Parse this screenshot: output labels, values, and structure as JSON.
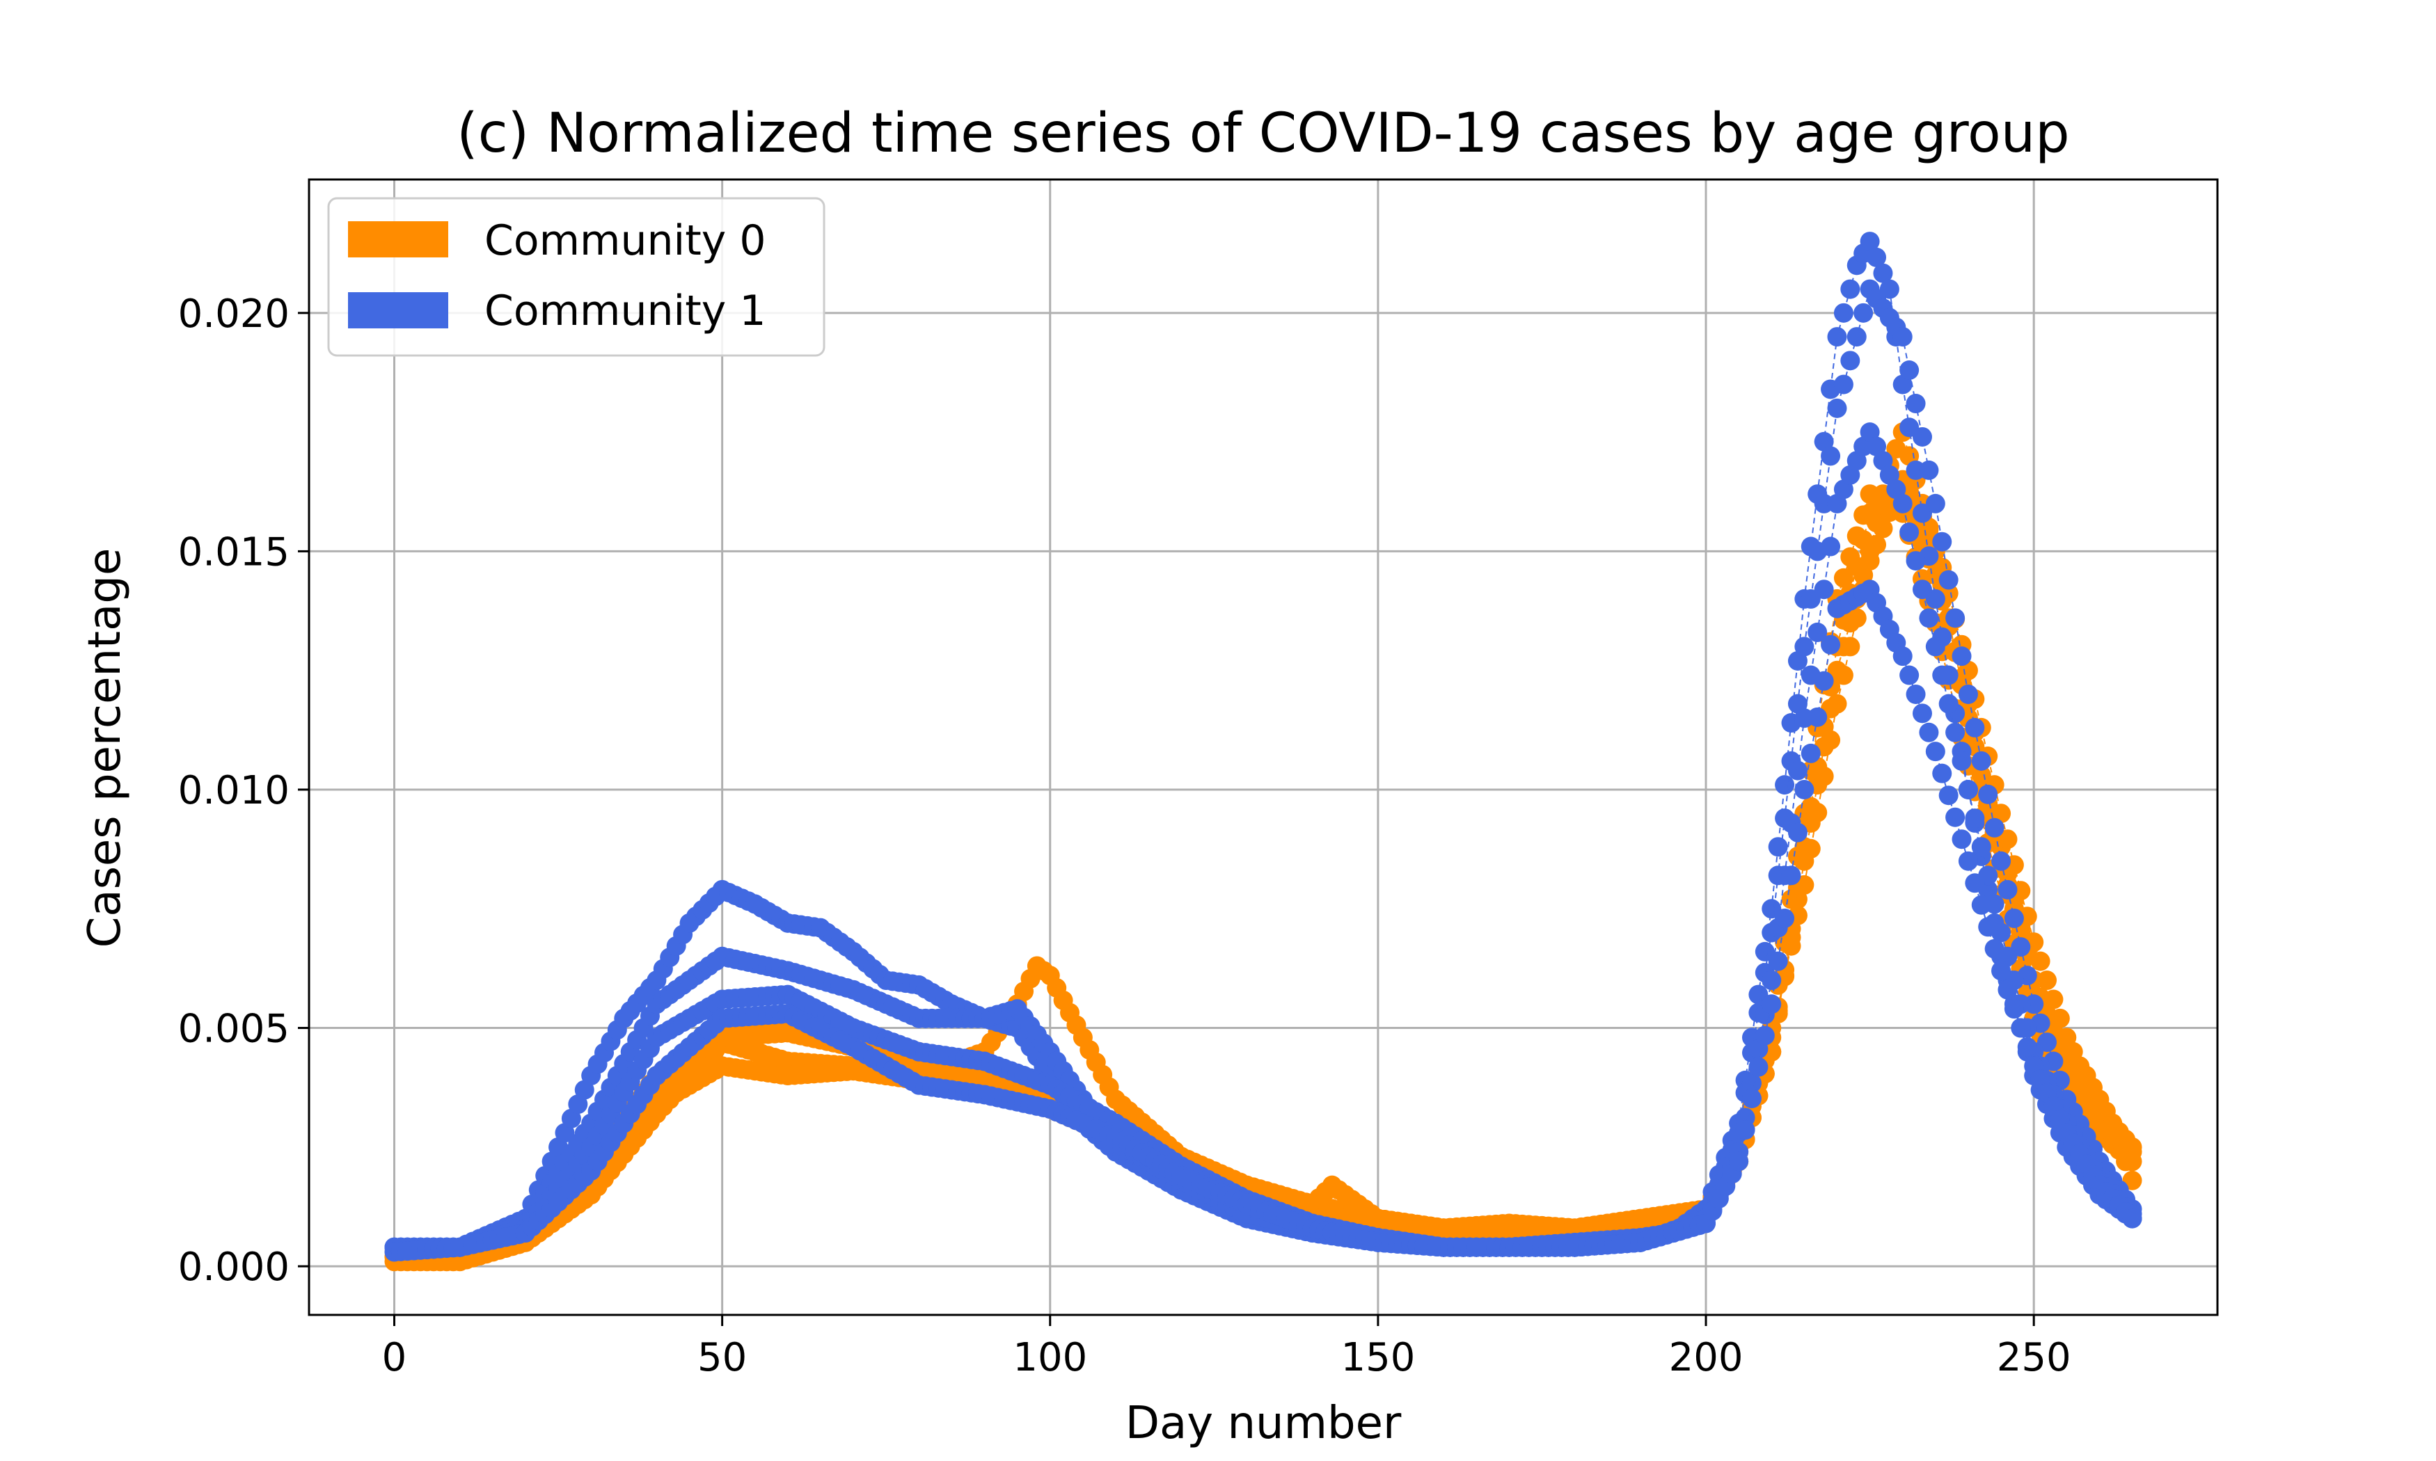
{
  "chart_data": {
    "type": "scatter",
    "title": "(c) Normalized time series of COVID-19 cases by age group",
    "xlabel": "Day number",
    "ylabel": "Cases percentage",
    "xlim": [
      -13,
      278
    ],
    "ylim": [
      -0.00102,
      0.0228
    ],
    "x_ticks": [
      0,
      50,
      100,
      150,
      200,
      250
    ],
    "x_tick_labels": [
      "0",
      "50",
      "100",
      "150",
      "200",
      "250"
    ],
    "y_ticks": [
      0.0,
      0.005,
      0.01,
      0.015,
      0.02
    ],
    "y_tick_labels": [
      "0.000",
      "0.005",
      "0.010",
      "0.015",
      "0.020"
    ],
    "grid": true,
    "legend_position": "top-left",
    "x_range": [
      0,
      265
    ],
    "series": [
      {
        "name": "Community 0",
        "color": "#FF8C00",
        "curves": [
          {
            "x": [
              0,
              10,
              20,
              30,
              40,
              50,
              55,
              60,
              70,
              80,
              90,
              95,
              98,
              100,
              105,
              110,
              120,
              130,
              140,
              143,
              150,
              160,
              170,
              180,
              190,
              195,
              200,
              205,
              210,
              215,
              220,
              225,
              228,
              230,
              235,
              240,
              245,
              250,
              255,
              258,
              262,
              265
            ],
            "y": [
              0.0001,
              0.0001,
              0.0005,
              0.0015,
              0.0032,
              0.0047,
              0.0045,
              0.0043,
              0.0042,
              0.004,
              0.0045,
              0.0055,
              0.0063,
              0.0061,
              0.0048,
              0.0035,
              0.0023,
              0.0016,
              0.0013,
              0.0017,
              0.001,
              0.0008,
              0.0009,
              0.0008,
              0.001,
              0.0011,
              0.0012,
              0.0022,
              0.0045,
              0.0085,
              0.0125,
              0.015,
              0.0168,
              0.0175,
              0.015,
              0.0115,
              0.0085,
              0.006,
              0.0042,
              0.004,
              0.003,
              0.0018
            ]
          },
          {
            "x": [
              0,
              10,
              20,
              30,
              40,
              50,
              60,
              70,
              80,
              90,
              100,
              110,
              120,
              130,
              140,
              150,
              160,
              170,
              180,
              190,
              200,
              205,
              210,
              215,
              220,
              225,
              230,
              235,
              240,
              245,
              250,
              255,
              260,
              265
            ],
            "y": [
              0.0002,
              0.0002,
              0.0006,
              0.0018,
              0.0036,
              0.0048,
              0.0049,
              0.0046,
              0.0042,
              0.0039,
              0.0033,
              0.0027,
              0.002,
              0.0015,
              0.0012,
              0.0009,
              0.0007,
              0.0007,
              0.0007,
              0.0008,
              0.0012,
              0.0025,
              0.005,
              0.0095,
              0.014,
              0.0162,
              0.0158,
              0.0135,
              0.0105,
              0.0078,
              0.0052,
              0.0036,
              0.0028,
              0.0022
            ]
          },
          {
            "x": [
              0,
              10,
              20,
              30,
              40,
              50,
              60,
              70,
              80,
              90,
              100,
              110,
              120,
              130,
              140,
              150,
              160,
              170,
              180,
              190,
              200,
              205,
              210,
              215,
              220,
              225,
              230,
              235,
              240,
              245,
              250,
              255,
              260,
              265
            ],
            "y": [
              0.0002,
              0.0003,
              0.0008,
              0.0022,
              0.004,
              0.005,
              0.0052,
              0.0049,
              0.0045,
              0.0042,
              0.0036,
              0.003,
              0.0023,
              0.0017,
              0.0013,
              0.001,
              0.0008,
              0.0007,
              0.0007,
              0.0008,
              0.0011,
              0.0022,
              0.0045,
              0.0088,
              0.013,
              0.0158,
              0.0162,
              0.0145,
              0.0118,
              0.0088,
              0.006,
              0.004,
              0.003,
              0.0024
            ]
          },
          {
            "x": [
              0,
              10,
              20,
              30,
              40,
              50,
              60,
              70,
              80,
              90,
              100,
              110,
              120,
              130,
              140,
              150,
              160,
              170,
              180,
              190,
              200,
              205,
              210,
              215,
              220,
              225,
              230,
              235,
              240,
              245,
              250,
              255,
              260,
              265
            ],
            "y": [
              0.0003,
              0.0003,
              0.0007,
              0.002,
              0.0034,
              0.0042,
              0.004,
              0.0041,
              0.0039,
              0.004,
              0.0034,
              0.0026,
              0.002,
              0.0014,
              0.0011,
              0.0009,
              0.0007,
              0.0008,
              0.0007,
              0.0008,
              0.0012,
              0.0024,
              0.0048,
              0.008,
              0.0118,
              0.0148,
              0.0165,
              0.0152,
              0.0125,
              0.0095,
              0.0068,
              0.0048,
              0.0033,
              0.0025
            ]
          }
        ]
      },
      {
        "name": "Community 1",
        "color": "#4169E1",
        "curves": [
          {
            "x": [
              0,
              10,
              20,
              30,
              35,
              40,
              45,
              50,
              55,
              60,
              65,
              70,
              75,
              80,
              85,
              90,
              95,
              100,
              105,
              110,
              120,
              130,
              140,
              150,
              160,
              170,
              180,
              190,
              195,
              200,
              205,
              210,
              215,
              220,
              223,
              225,
              228,
              230,
              235,
              240,
              245,
              250,
              255,
              260,
              265
            ],
            "y": [
              0.0004,
              0.0004,
              0.001,
              0.004,
              0.0052,
              0.006,
              0.0072,
              0.0079,
              0.0076,
              0.0072,
              0.0071,
              0.0066,
              0.006,
              0.0059,
              0.0055,
              0.0052,
              0.005,
              0.004,
              0.003,
              0.0024,
              0.0016,
              0.001,
              0.0007,
              0.0005,
              0.0004,
              0.0004,
              0.0005,
              0.0006,
              0.0007,
              0.0012,
              0.003,
              0.0075,
              0.014,
              0.0195,
              0.021,
              0.0215,
              0.0205,
              0.0185,
              0.014,
              0.01,
              0.0065,
              0.004,
              0.0025,
              0.0015,
              0.001
            ]
          },
          {
            "x": [
              0,
              10,
              20,
              30,
              40,
              50,
              60,
              70,
              80,
              90,
              95,
              100,
              105,
              110,
              120,
              130,
              140,
              150,
              160,
              170,
              180,
              190,
              200,
              205,
              210,
              215,
              220,
              225,
              230,
              235,
              240,
              245,
              250,
              255,
              260,
              265
            ],
            "y": [
              0.0004,
              0.0004,
              0.0009,
              0.003,
              0.0055,
              0.0065,
              0.0062,
              0.0058,
              0.0052,
              0.0052,
              0.0054,
              0.0045,
              0.0035,
              0.0026,
              0.0018,
              0.0011,
              0.0008,
              0.0006,
              0.0004,
              0.0004,
              0.0004,
              0.0005,
              0.001,
              0.0028,
              0.007,
              0.013,
              0.018,
              0.0205,
              0.0195,
              0.016,
              0.012,
              0.0085,
              0.0055,
              0.0035,
              0.0022,
              0.0012
            ]
          },
          {
            "x": [
              0,
              10,
              20,
              30,
              40,
              50,
              60,
              70,
              80,
              90,
              100,
              110,
              120,
              130,
              140,
              150,
              160,
              170,
              180,
              190,
              200,
              205,
              210,
              215,
              220,
              225,
              230,
              235,
              240,
              245,
              250,
              255,
              260,
              265
            ],
            "y": [
              0.0004,
              0.0004,
              0.0008,
              0.0025,
              0.0048,
              0.0056,
              0.0057,
              0.005,
              0.0045,
              0.0043,
              0.0038,
              0.003,
              0.0021,
              0.0014,
              0.0009,
              0.0006,
              0.0004,
              0.0004,
              0.0004,
              0.0005,
              0.0009,
              0.0024,
              0.006,
              0.0115,
              0.016,
              0.0175,
              0.016,
              0.013,
              0.01,
              0.007,
              0.0045,
              0.003,
              0.0018,
              0.0011
            ]
          },
          {
            "x": [
              0,
              10,
              20,
              30,
              40,
              50,
              60,
              70,
              80,
              90,
              100,
              110,
              120,
              130,
              140,
              150,
              160,
              170,
              180,
              190,
              200,
              205,
              210,
              215,
              220,
              225,
              230,
              235,
              240,
              245,
              250,
              255,
              260,
              265
            ],
            "y": [
              0.0003,
              0.0004,
              0.0007,
              0.002,
              0.004,
              0.0052,
              0.0053,
              0.0046,
              0.0038,
              0.0036,
              0.0033,
              0.0027,
              0.0019,
              0.0013,
              0.0008,
              0.0005,
              0.0004,
              0.0004,
              0.0004,
              0.0005,
              0.0009,
              0.0022,
              0.0055,
              0.01,
              0.0138,
              0.0142,
              0.0128,
              0.0108,
              0.0085,
              0.0062,
              0.0042,
              0.0028,
              0.0017,
              0.001
            ]
          }
        ]
      }
    ]
  }
}
